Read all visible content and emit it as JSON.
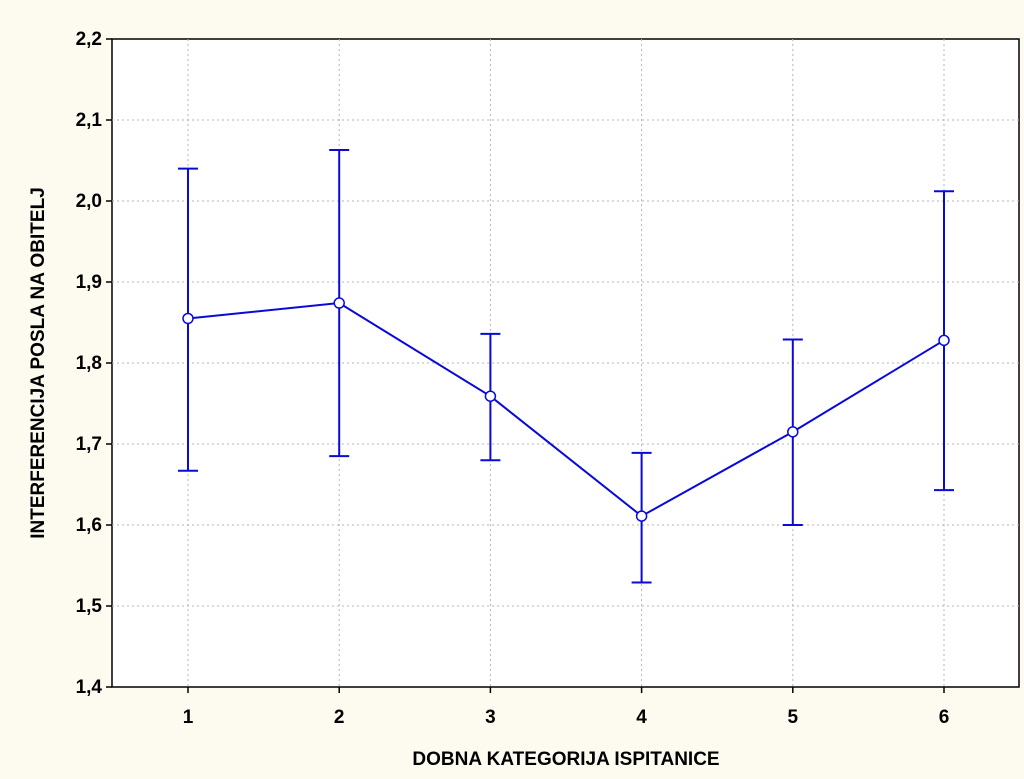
{
  "chart_data": {
    "type": "line",
    "title": "",
    "xlabel": "DOBNA KATEGORIJA ISPITANICE",
    "ylabel": "INTERFERENCIJA POSLA NA OBITELJ",
    "categories": [
      "1",
      "2",
      "3",
      "4",
      "5",
      "6"
    ],
    "series": [
      {
        "values": [
          1.855,
          1.874,
          1.759,
          1.611,
          1.715,
          1.828
        ],
        "error_upper": [
          2.04,
          2.063,
          1.836,
          1.689,
          1.829,
          2.012
        ],
        "error_lower": [
          1.667,
          1.685,
          1.68,
          1.529,
          1.6,
          1.643
        ]
      }
    ],
    "ylim": [
      1.4,
      2.2
    ],
    "yticks": [
      1.4,
      1.5,
      1.6,
      1.7,
      1.8,
      1.9,
      2.0,
      2.1,
      2.2
    ],
    "ytick_labels": [
      "1,4",
      "1,5",
      "1,6",
      "1,7",
      "1,8",
      "1,9",
      "2,0",
      "2,1",
      "2,2"
    ],
    "grid": true,
    "colors": {
      "series": "#0a0ad8",
      "grid": "#b4b4b4",
      "plot_background": "#ffffff",
      "page_background": "#fdfbef"
    }
  }
}
